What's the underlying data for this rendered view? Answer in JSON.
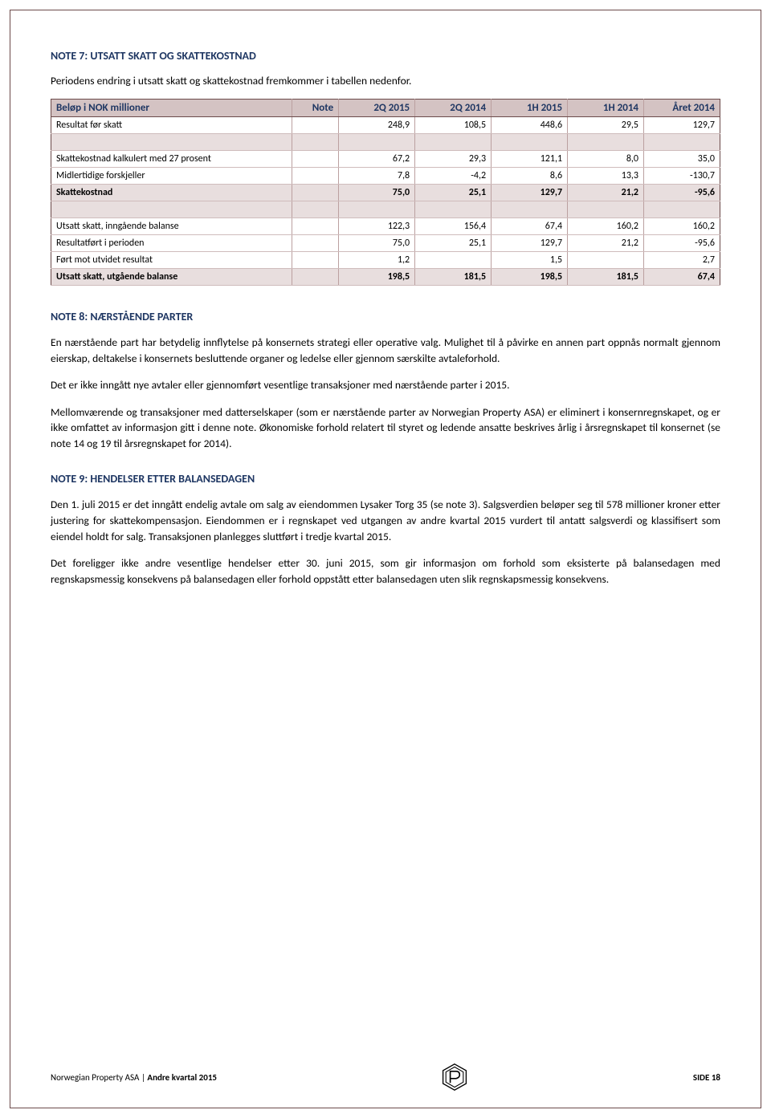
{
  "note7": {
    "title": "NOTE 7: UTSATT SKATT OG SKATTEKOSTNAD",
    "intro": "Periodens endring i utsatt skatt og skattekostnad fremkommer i tabellen nedenfor.",
    "columns": [
      "Beløp i NOK millioner",
      "Note",
      "2Q 2015",
      "2Q 2014",
      "1H 2015",
      "1H 2014",
      "Året 2014"
    ],
    "rows": [
      {
        "type": "data",
        "cells": [
          "Resultat før skatt",
          "",
          "248,9",
          "108,5",
          "448,6",
          "29,5",
          "129,7"
        ]
      },
      {
        "type": "spacer"
      },
      {
        "type": "data",
        "cells": [
          "Skattekostnad kalkulert med 27 prosent",
          "",
          "67,2",
          "29,3",
          "121,1",
          "8,0",
          "35,0"
        ]
      },
      {
        "type": "data",
        "cells": [
          "Midlertidige forskjeller",
          "",
          "7,8",
          "-4,2",
          "8,6",
          "13,3",
          "-130,7"
        ]
      },
      {
        "type": "bold",
        "cells": [
          "Skattekostnad",
          "",
          "75,0",
          "25,1",
          "129,7",
          "21,2",
          "-95,6"
        ]
      },
      {
        "type": "spacer"
      },
      {
        "type": "data",
        "cells": [
          "Utsatt skatt, inngående balanse",
          "",
          "122,3",
          "156,4",
          "67,4",
          "160,2",
          "160,2"
        ]
      },
      {
        "type": "data",
        "cells": [
          "Resultatført i perioden",
          "",
          "75,0",
          "25,1",
          "129,7",
          "21,2",
          "-95,6"
        ]
      },
      {
        "type": "data",
        "cells": [
          "Ført mot utvidet resultat",
          "",
          "1,2",
          "",
          "1,5",
          "",
          "2,7"
        ]
      },
      {
        "type": "bold",
        "cells": [
          "Utsatt skatt, utgående balanse",
          "",
          "198,5",
          "181,5",
          "198,5",
          "181,5",
          "67,4"
        ]
      }
    ]
  },
  "note8": {
    "title": "NOTE 8: NÆRSTÅENDE PARTER",
    "p1": "En nærstående part har betydelig innflytelse på konsernets strategi eller operative valg. Mulighet til å påvirke en annen part oppnås normalt gjennom eierskap, deltakelse i konsernets besluttende organer og ledelse eller gjennom særskilte avtaleforhold.",
    "p2": "Det er ikke inngått nye avtaler eller gjennomført vesentlige transaksjoner med nærstående parter i 2015.",
    "p3": "Mellomværende og transaksjoner med datterselskaper (som er nærstående parter av Norwegian Property ASA) er eliminert i konsernregnskapet, og er ikke omfattet av informasjon gitt i denne note. Økonomiske forhold relatert til styret og ledende ansatte beskrives årlig i årsregnskapet til konsernet (se note 14 og 19 til årsregnskapet for 2014)."
  },
  "note9": {
    "title": "NOTE 9: HENDELSER ETTER BALANSEDAGEN",
    "p1": "Den 1. juli 2015 er det inngått endelig avtale om salg av eiendommen Lysaker Torg 35 (se note 3). Salgsverdien beløper seg til 578 millioner kroner etter justering for skattekompensasjon. Eiendommen er i regnskapet ved utgangen av andre kvartal 2015 vurdert til antatt salgsverdi og klassifisert som eiendel holdt for salg. Transaksjonen planlegges sluttført i tredje kvartal 2015.",
    "p2": "Det foreligger ikke andre vesentlige hendelser etter 30. juni 2015, som gir informasjon om forhold som eksisterte på balansedagen med regnskapsmessig konsekvens på balansedagen eller forhold oppstått etter balansedagen uten slik regnskapsmessig konsekvens."
  },
  "footer": {
    "company": "Norwegian Property ASA",
    "sep": " | ",
    "period": "Andre kvartal 2015",
    "page_label": "SIDE 18"
  }
}
